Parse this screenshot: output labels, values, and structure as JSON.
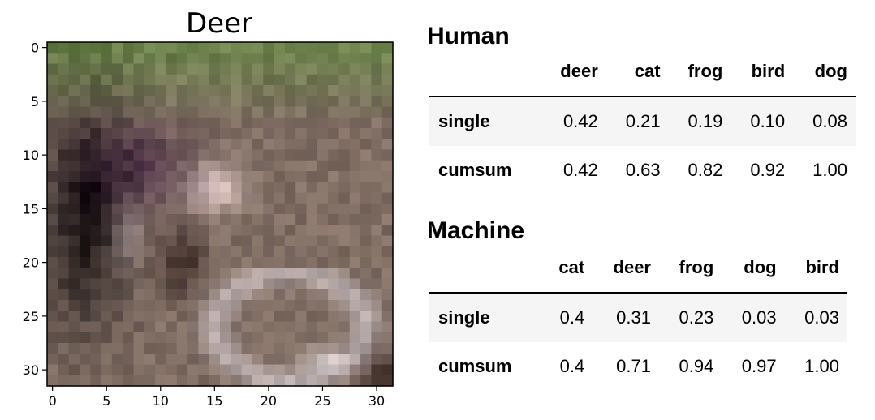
{
  "image_panel": {
    "title": "Deer",
    "x_ticks": [
      "0",
      "5",
      "10",
      "15",
      "20",
      "25",
      "30"
    ],
    "y_ticks": [
      "0",
      "5",
      "10",
      "15",
      "20",
      "25",
      "30"
    ],
    "x_range": [
      -0.5,
      31.5
    ],
    "y_range": [
      -0.5,
      31.5
    ],
    "grid_size": 32
  },
  "human": {
    "title": "Human",
    "columns": [
      "deer",
      "cat",
      "frog",
      "bird",
      "dog"
    ],
    "rows": [
      {
        "label": "single",
        "values": [
          "0.42",
          "0.21",
          "0.19",
          "0.10",
          "0.08"
        ]
      },
      {
        "label": "cumsum",
        "values": [
          "0.42",
          "0.63",
          "0.82",
          "0.92",
          "1.00"
        ]
      }
    ]
  },
  "machine": {
    "title": "Machine",
    "columns": [
      "cat",
      "deer",
      "frog",
      "dog",
      "bird"
    ],
    "rows": [
      {
        "label": "single",
        "values": [
          "0.4",
          "0.31",
          "0.23",
          "0.03",
          "0.03"
        ]
      },
      {
        "label": "cumsum",
        "values": [
          "0.4",
          "0.71",
          "0.94",
          "0.97",
          "1.00"
        ]
      }
    ]
  }
}
